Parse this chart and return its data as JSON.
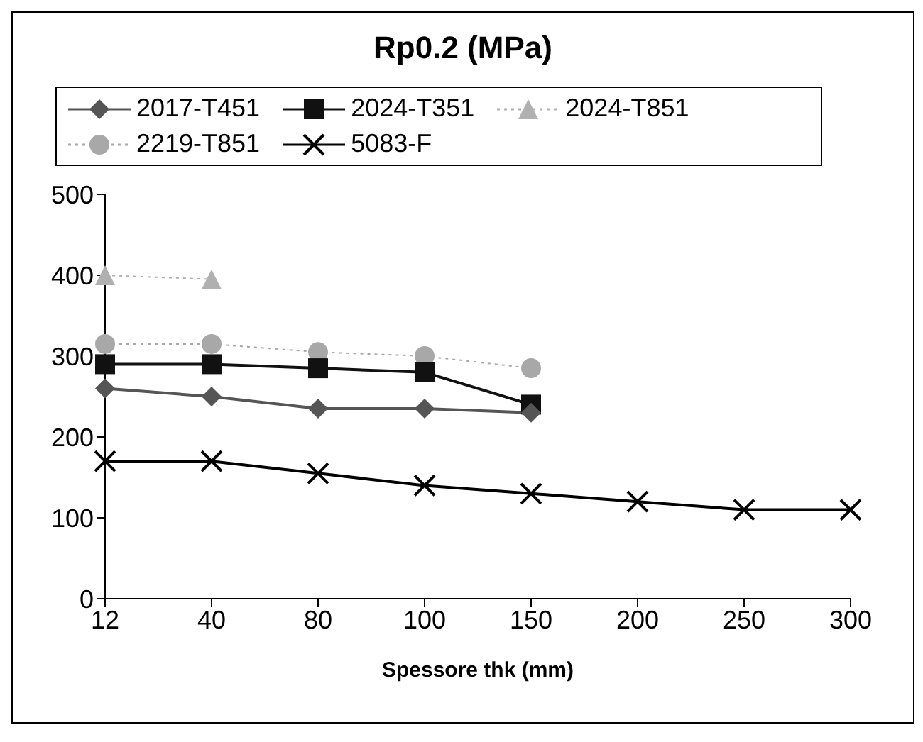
{
  "chart_data": {
    "type": "line",
    "title": "Rp0.2 (MPa)",
    "xlabel": "Spessore thk (mm)",
    "categories": [
      "12",
      "40",
      "80",
      "100",
      "150",
      "200",
      "250",
      "300"
    ],
    "ylim": [
      0,
      500
    ],
    "yticks": [
      0,
      100,
      200,
      300,
      400,
      500
    ],
    "grid": false,
    "legend": "top",
    "series": [
      {
        "name": "2017-T451",
        "color": "#555555",
        "marker": "diamond",
        "line_style": "solid",
        "values": [
          260,
          250,
          235,
          235,
          230,
          null,
          null,
          null
        ]
      },
      {
        "name": "2024-T351",
        "color": "#111111",
        "marker": "square",
        "line_style": "solid",
        "values": [
          290,
          290,
          285,
          280,
          240,
          null,
          null,
          null
        ]
      },
      {
        "name": "2024-T851",
        "color": "#b0b0b0",
        "marker": "triangle",
        "line_style": "dotted",
        "values": [
          400,
          395,
          null,
          null,
          null,
          null,
          null,
          null
        ]
      },
      {
        "name": "2219-T851",
        "color": "#a8a8a8",
        "marker": "circle",
        "line_style": "dotted",
        "values": [
          315,
          315,
          305,
          300,
          285,
          null,
          null,
          null
        ]
      },
      {
        "name": "5083-F",
        "color": "#000000",
        "marker": "cross",
        "line_style": "solid",
        "values": [
          170,
          170,
          155,
          140,
          130,
          120,
          110,
          110
        ]
      }
    ]
  }
}
